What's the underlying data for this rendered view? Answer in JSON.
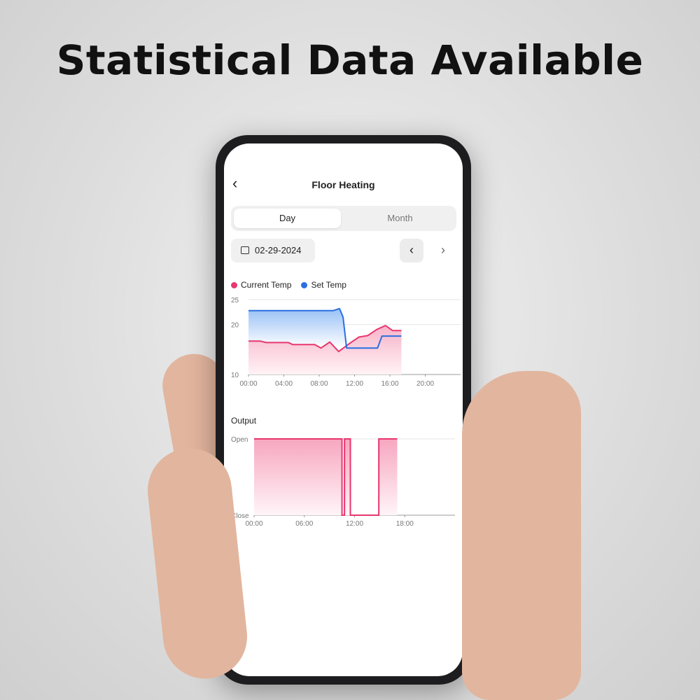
{
  "headline": "Statistical Data Available",
  "app": {
    "title": "Floor Heating",
    "tabs": [
      {
        "label": "Day",
        "active": true
      },
      {
        "label": "Month",
        "active": false
      }
    ],
    "date": "02-29-2024",
    "icons": {
      "back": "chevron-left-icon",
      "calendar": "calendar-icon",
      "prev": "chevron-left-icon",
      "next": "chevron-right-icon"
    }
  },
  "chart_data": [
    {
      "type": "area",
      "legend": [
        "Current Temp",
        "Set Temp"
      ],
      "legend_placement": "top-left",
      "ylim": [
        10,
        25
      ],
      "yticks": [
        "10",
        "20",
        "25"
      ],
      "xlim": [
        0,
        24
      ],
      "xticks": [
        "00:00",
        "04:00",
        "08:00",
        "12:00",
        "16:00",
        "20:00"
      ],
      "grid": true,
      "series": [
        {
          "name": "Current Temp",
          "color": "#e8376e",
          "points": [
            [
              0,
              16.7
            ],
            [
              1.3,
              16.7
            ],
            [
              2,
              16.4
            ],
            [
              4.5,
              16.4
            ],
            [
              5,
              16.0
            ],
            [
              7.5,
              16.0
            ],
            [
              8.2,
              15.3
            ],
            [
              9.2,
              16.5
            ],
            [
              10.2,
              14.6
            ],
            [
              11.5,
              16.3
            ],
            [
              12.5,
              17.5
            ],
            [
              13.5,
              17.8
            ],
            [
              14.5,
              19.0
            ],
            [
              15.5,
              19.8
            ],
            [
              16.3,
              18.8
            ],
            [
              17.3,
              18.8
            ]
          ]
        },
        {
          "name": "Set Temp",
          "color": "#2a6fe0",
          "points": [
            [
              0,
              22.8
            ],
            [
              9.6,
              22.8
            ],
            [
              10.3,
              23.2
            ],
            [
              10.7,
              21.5
            ],
            [
              11.1,
              15.3
            ],
            [
              14.6,
              15.3
            ],
            [
              15.1,
              17.7
            ],
            [
              17.3,
              17.7
            ]
          ]
        }
      ]
    },
    {
      "type": "line",
      "title": "Output",
      "yticks": [
        "Close",
        "Open"
      ],
      "xlim": [
        0,
        24
      ],
      "xticks": [
        "00:00",
        "06:00",
        "12:00",
        "18:00"
      ],
      "color": "#e8376e",
      "steps": [
        [
          0,
          1
        ],
        [
          10.5,
          0
        ],
        [
          10.8,
          1
        ],
        [
          11.5,
          0
        ],
        [
          14.9,
          1
        ],
        [
          17.1,
          1
        ]
      ]
    }
  ]
}
